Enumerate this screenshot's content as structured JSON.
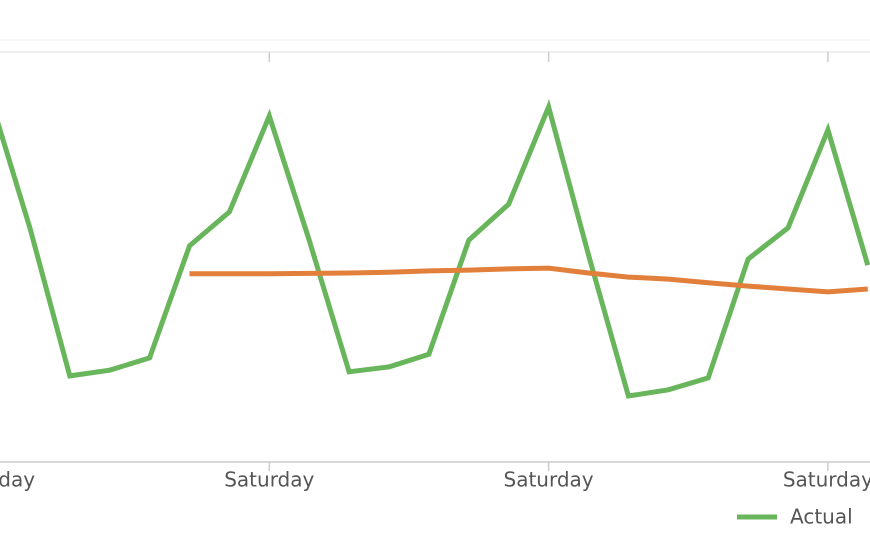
{
  "chart_data": {
    "type": "line",
    "categories": [
      "Saturday",
      null,
      null,
      null,
      null,
      null,
      null,
      "Saturday",
      null,
      null,
      null,
      null,
      null,
      null,
      "Saturday",
      null,
      null,
      null,
      null,
      null,
      null,
      "Saturday",
      null
    ],
    "ylim": [
      0,
      100
    ],
    "series": [
      {
        "name": "Actual",
        "color": "#68b55b",
        "values": [
          89.0,
          57.1,
          21.0,
          22.4,
          25.4,
          52.7,
          61.0,
          84.4,
          54.1,
          22.0,
          23.2,
          26.3,
          54.1,
          62.9,
          86.6,
          50.5,
          16.1,
          17.6,
          20.5,
          49.5,
          57.1,
          81.0,
          48.0
        ]
      },
      {
        "color": "#e17f3b",
        "values": [
          null,
          null,
          null,
          null,
          null,
          45.9,
          45.9,
          45.9,
          46.0,
          46.1,
          46.3,
          46.6,
          46.8,
          47.1,
          47.3,
          46.1,
          45.1,
          44.6,
          43.7,
          42.9,
          42.2,
          41.5,
          42.2
        ]
      }
    ]
  }
}
